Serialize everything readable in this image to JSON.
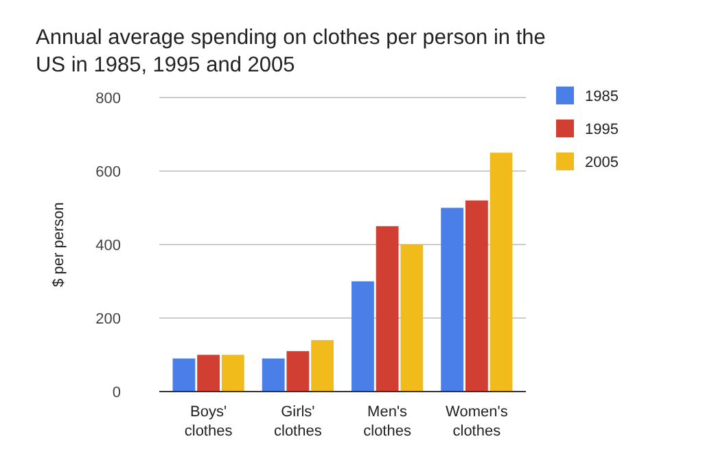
{
  "chart_data": {
    "type": "bar",
    "title": "Annual average spending on clothes per person in the US in 1985, 1995 and 2005",
    "ylabel": "$ per person",
    "categories": [
      "Boys' clothes",
      "Girls' clothes",
      "Men's clothes",
      "Women's clothes"
    ],
    "series": [
      {
        "name": "1985",
        "color": "#4a7fe8",
        "values": [
          90,
          90,
          300,
          500
        ]
      },
      {
        "name": "1995",
        "color": "#d13f33",
        "values": [
          100,
          110,
          450,
          520
        ]
      },
      {
        "name": "2005",
        "color": "#f1bc1b",
        "values": [
          100,
          140,
          400,
          650
        ]
      }
    ],
    "ylim": [
      0,
      800
    ],
    "yticks": [
      0,
      200,
      400,
      600,
      800
    ],
    "grid": "y",
    "legend": "top right"
  }
}
